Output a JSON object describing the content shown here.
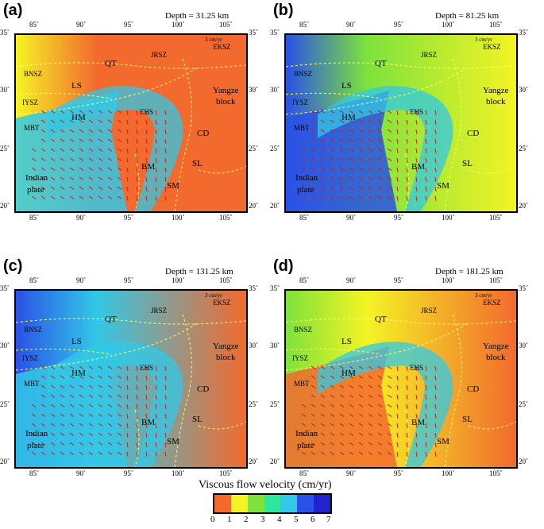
{
  "panels": [
    {
      "label": "(a)",
      "depth": "Depth = 31.25 km"
    },
    {
      "label": "(b)",
      "depth": "Depth = 81.25 km"
    },
    {
      "label": "(c)",
      "depth": "Depth = 131.25 km"
    },
    {
      "label": "(d)",
      "depth": "Depth = 181.25 km"
    }
  ],
  "axes": {
    "lon": [
      "85˚",
      "90˚",
      "95˚",
      "100˚",
      "105˚"
    ],
    "lat": [
      "35˚",
      "30˚",
      "25˚",
      "20˚"
    ]
  },
  "map_labels": {
    "QT": "QT",
    "JRSZ": "JRSZ",
    "EKSZ": "EKSZ",
    "BNSZ": "BNSZ",
    "LS": "LS",
    "IYSZ": "IYSZ",
    "HM": "HM",
    "EHS": "EHS",
    "MBT": "MBT",
    "Yangze": "Yangze",
    "block": "block",
    "CD": "CD",
    "BM": "BM",
    "SL": "SL",
    "SM": "SM",
    "Indian": "Indian",
    "plate": "plate"
  },
  "scale_vector": "3 cm/yr",
  "legend": {
    "title": "Viscous flow velocity (cm/yr)",
    "ticks": [
      "0",
      "1",
      "2",
      "3",
      "4",
      "5",
      "6",
      "7"
    ],
    "colors": [
      "#f26a2e",
      "#f4f424",
      "#7de23c",
      "#2ee6a0",
      "#32c8e6",
      "#2a52e6",
      "#2222d0",
      "#9a2ae6"
    ]
  }
}
